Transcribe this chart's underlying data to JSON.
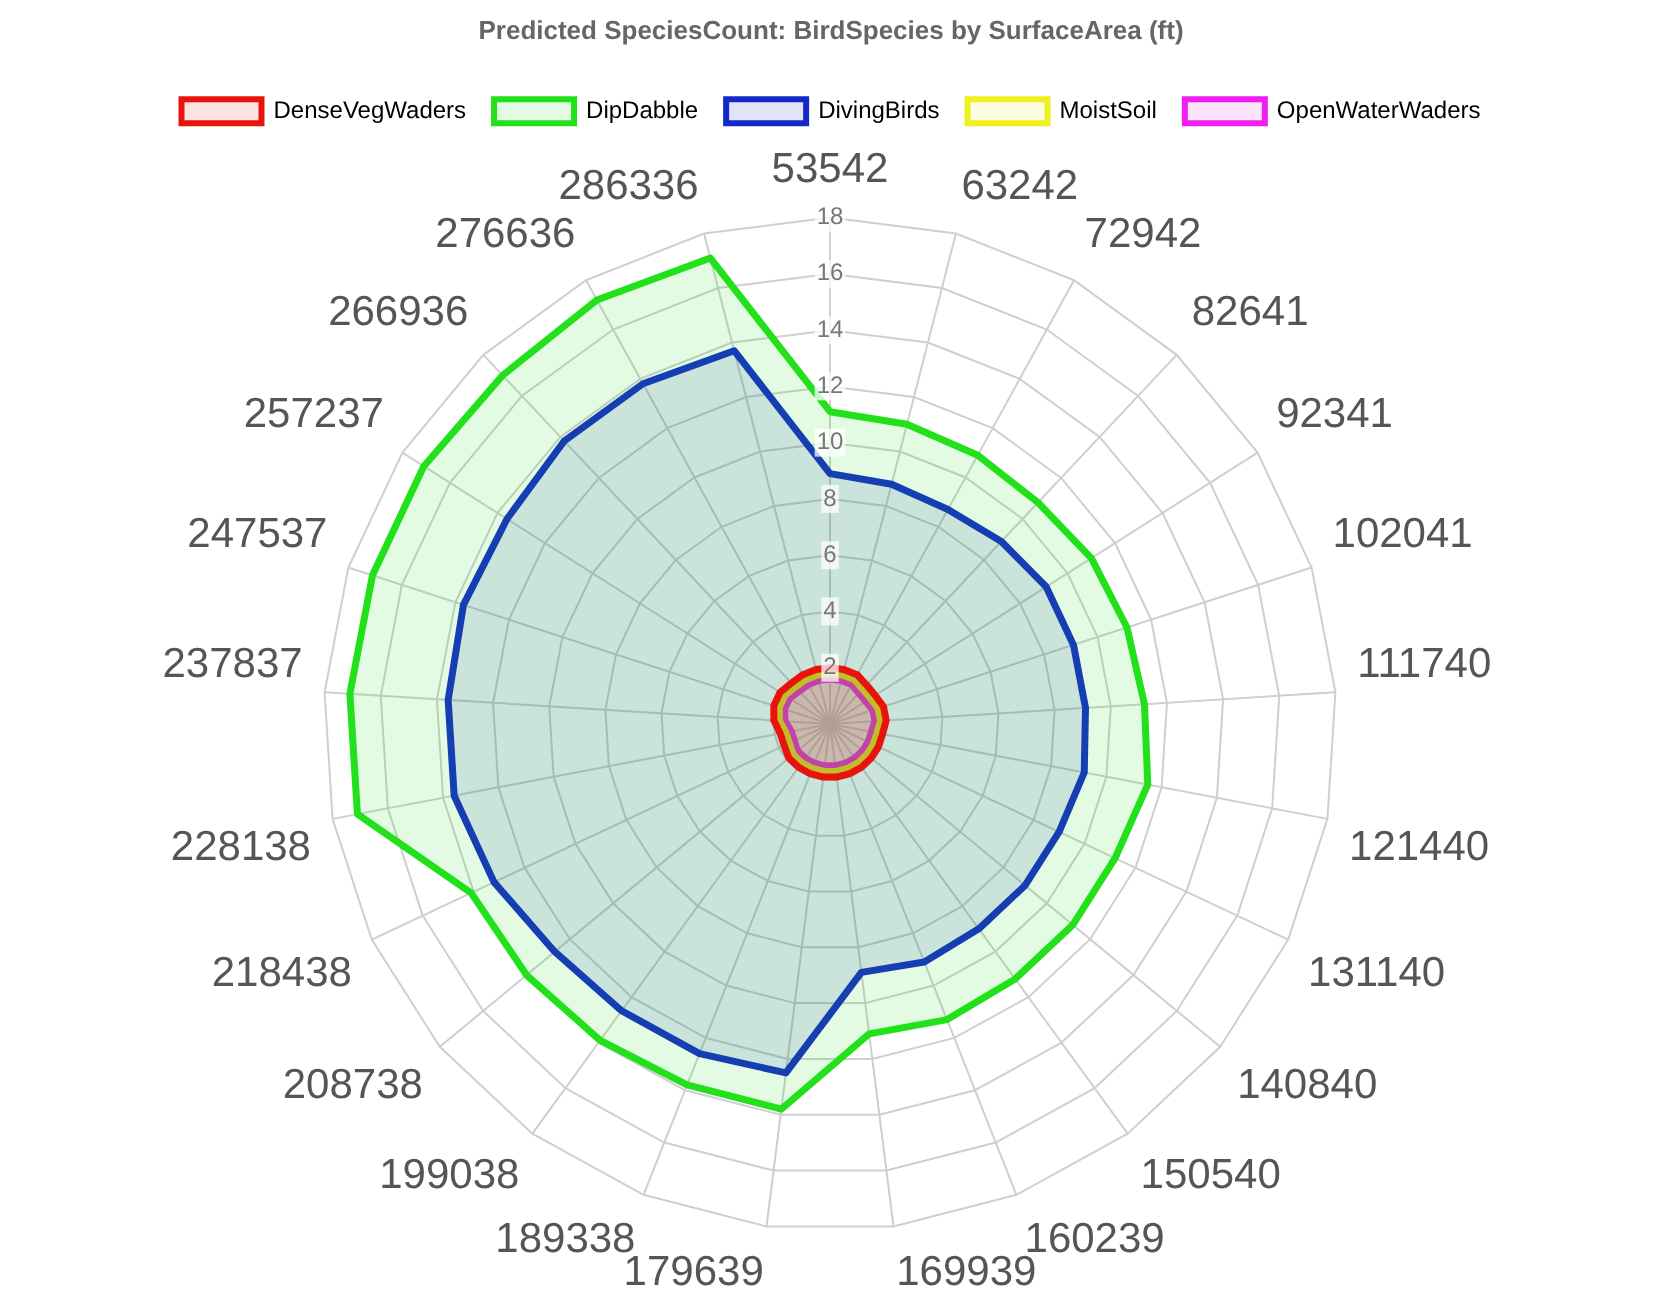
{
  "chart_data": {
    "type": "radar",
    "title": "Predicted SpeciesCount: BirdSpecies by SurfaceArea (ft)",
    "categories": [
      "53542",
      "63242",
      "72942",
      "82641",
      "92341",
      "102041",
      "111740",
      "121440",
      "131140",
      "140840",
      "150540",
      "160239",
      "169939",
      "179639",
      "189338",
      "199038",
      "208738",
      "218438",
      "228138",
      "237837",
      "247537",
      "257237",
      "266936",
      "276636",
      "286336"
    ],
    "series": [
      {
        "name": "DenseVegWaders",
        "color": "#e8140c",
        "values": [
          2.0,
          2.0,
          2.0,
          1.9,
          1.9,
          2.0,
          2.0,
          1.9,
          1.9,
          1.9,
          1.9,
          1.9,
          1.9,
          1.9,
          1.9,
          1.9,
          1.9,
          1.8,
          1.8,
          2.0,
          2.1,
          2.1,
          2.0,
          2.0,
          2.0
        ]
      },
      {
        "name": "DipDabble",
        "color": "#22e01a",
        "values": [
          11.1,
          11.0,
          10.9,
          10.8,
          11.0,
          11.1,
          11.2,
          11.5,
          11.2,
          11.2,
          11.2,
          11.3,
          11.1,
          13.8,
          13.8,
          13.9,
          14.0,
          14.1,
          17.1,
          17.1,
          17.1,
          17.1,
          17.0,
          17.2,
          17.1
        ]
      },
      {
        "name": "DivingBirds",
        "color": "#1428c8",
        "values": [
          8.9,
          8.8,
          8.7,
          8.9,
          9.1,
          9.1,
          9.1,
          9.2,
          9.0,
          9.0,
          9.0,
          9.1,
          8.9,
          12.5,
          12.6,
          12.6,
          12.7,
          13.2,
          13.6,
          13.6,
          13.7,
          13.6,
          13.8,
          13.8,
          13.7
        ]
      },
      {
        "name": "MoistSoil",
        "color": "#f0f01e",
        "values": [
          1.8,
          1.8,
          1.8,
          1.7,
          1.7,
          1.8,
          1.8,
          1.7,
          1.7,
          1.7,
          1.7,
          1.7,
          1.7,
          1.7,
          1.7,
          1.7,
          1.7,
          1.6,
          1.6,
          1.8,
          1.9,
          1.9,
          1.8,
          1.8,
          1.8
        ]
      },
      {
        "name": "OpenWaterWaders",
        "color": "#f01ef0",
        "values": [
          1.6,
          1.6,
          1.6,
          1.5,
          1.5,
          1.6,
          1.6,
          1.5,
          1.5,
          1.5,
          1.5,
          1.5,
          1.5,
          1.5,
          1.5,
          1.5,
          1.5,
          1.4,
          1.4,
          1.6,
          1.7,
          1.7,
          1.6,
          1.6,
          1.6
        ]
      }
    ],
    "ylim": [
      0,
      18
    ],
    "yticks": [
      2,
      4,
      6,
      8,
      10,
      12,
      14,
      16,
      18
    ],
    "grid": true,
    "legend": "top",
    "marker": "none"
  }
}
